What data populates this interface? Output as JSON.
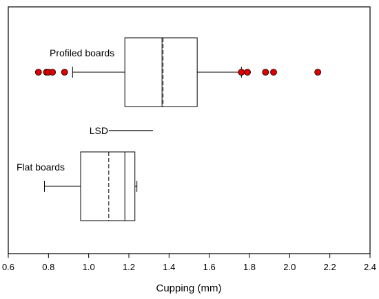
{
  "chart_data": {
    "type": "box",
    "orientation": "horizontal",
    "title": "",
    "xlabel": "Cupping (mm)",
    "ylabel": "",
    "xlim": [
      0.6,
      2.4
    ],
    "xticks": [
      "0.6",
      "0.8",
      "1.0",
      "1.2",
      "1.4",
      "1.6",
      "1.8",
      "2.0",
      "2.2",
      "2.4"
    ],
    "grid": false,
    "series": [
      {
        "name": "Profiled boards",
        "whisker_low": 0.92,
        "q1": 1.18,
        "median": 1.365,
        "mean": 1.37,
        "q3": 1.54,
        "whisker_high": 1.76,
        "outliers": [
          0.75,
          0.79,
          0.8,
          0.82,
          0.88,
          1.76,
          1.79,
          1.88,
          1.92,
          2.14
        ]
      },
      {
        "name": "Flat boards",
        "whisker_low": 0.78,
        "q1": 0.96,
        "median": 1.18,
        "mean": 1.1,
        "q3": 1.23,
        "whisker_high": 1.24,
        "outliers": []
      }
    ],
    "annotations": [
      {
        "text": "LSD",
        "x_start": 1.1,
        "x_end": 1.32
      }
    ]
  }
}
